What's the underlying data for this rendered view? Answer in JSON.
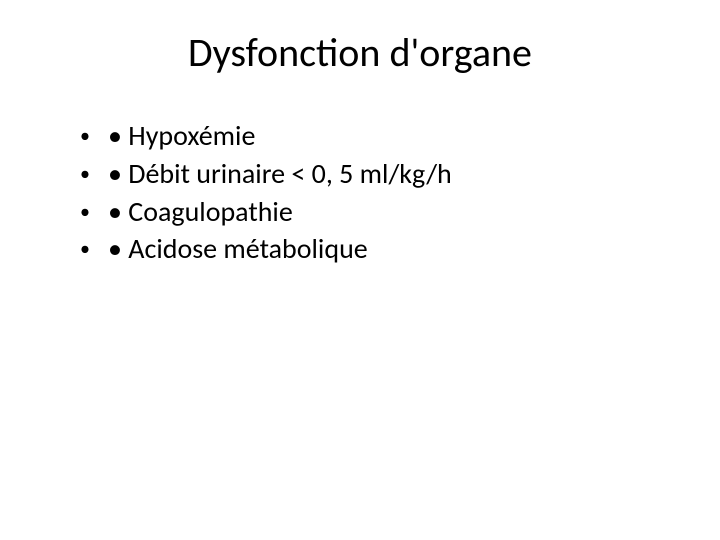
{
  "slide": {
    "title": "Dysfonction d'organe",
    "bullets": [
      "• Hypoxémie",
      "• Débit urinaire < 0, 5 ml/kg/h",
      "• Coagulopathie",
      "• Acidose métabolique"
    ]
  },
  "styling": {
    "background_color": "#ffffff",
    "text_color": "#000000",
    "title_fontsize": 40,
    "body_fontsize": 28,
    "font_family": "Calibri"
  }
}
